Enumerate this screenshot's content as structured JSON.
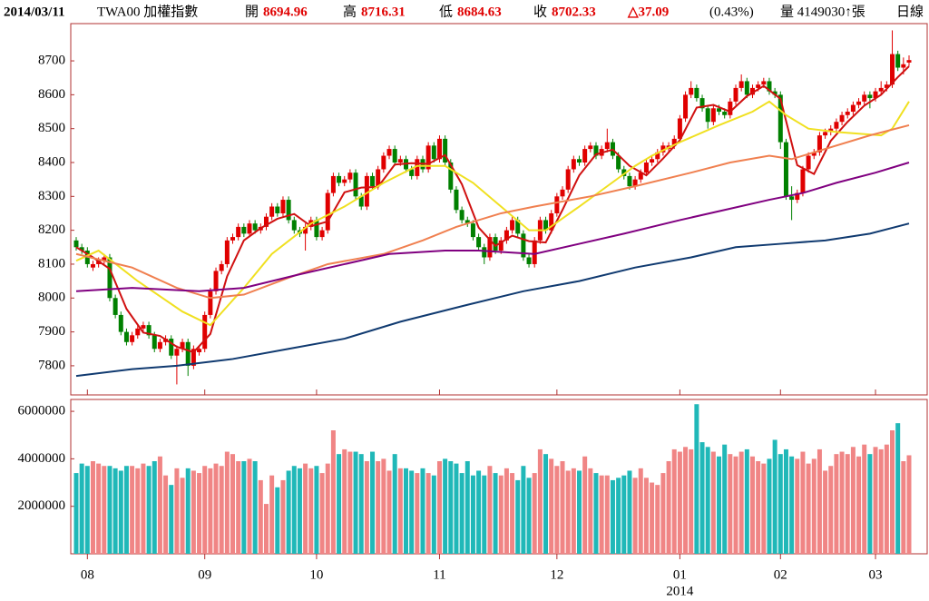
{
  "header": {
    "date": "2014/03/11",
    "symbol": "TWA00 加權指數",
    "open_label": "開",
    "open": "8694.96",
    "high_label": "高",
    "high": "8716.31",
    "low_label": "低",
    "low": "8684.63",
    "close_label": "收",
    "close": "8702.33",
    "change": "△37.09",
    "change_pct": "(0.43%)",
    "volume": "量 4149030↑張",
    "period": "日線"
  },
  "chart_data": {
    "type": "candlestick",
    "up_color": "#e00000",
    "down_color": "#008000",
    "ylim": [
      7714,
      8810
    ],
    "yticks": [
      7800,
      7900,
      8000,
      8100,
      8200,
      8300,
      8400,
      8500,
      8600,
      8700
    ],
    "xlim": [
      0,
      149
    ],
    "xticks": [
      {
        "value": 2,
        "label": "08"
      },
      {
        "value": 23,
        "label": "09"
      },
      {
        "value": 43,
        "label": "10"
      },
      {
        "value": 65,
        "label": "11"
      },
      {
        "value": 86,
        "label": "12"
      },
      {
        "value": 108,
        "label": "01"
      },
      {
        "value": 126,
        "label": "02"
      },
      {
        "value": 143,
        "label": "03"
      }
    ],
    "annotation": "2014",
    "annotation_x": 108,
    "open": [
      8170,
      8150,
      8140,
      8090,
      8100,
      8110,
      8120,
      8000,
      7950,
      7900,
      7870,
      7890,
      7910,
      7920,
      7890,
      7850,
      7870,
      7880,
      7830,
      7850,
      7870,
      7800,
      7840,
      7850,
      7950,
      8020,
      8080,
      8100,
      8170,
      8180,
      8210,
      8190,
      8220,
      8200,
      8210,
      8240,
      8270,
      8250,
      8290,
      8230,
      8200,
      8190,
      8210,
      8230,
      8180,
      8200,
      8310,
      8360,
      8340,
      8350,
      8370,
      8300,
      8270,
      8360,
      8330,
      8380,
      8420,
      8440,
      8400,
      8410,
      8380,
      8360,
      8410,
      8380,
      8450,
      8410,
      8470,
      8400,
      8320,
      8260,
      8230,
      8220,
      8180,
      8150,
      8120,
      8180,
      8140,
      8170,
      8200,
      8230,
      8190,
      8120,
      8100,
      8170,
      8230,
      8200,
      8250,
      8300,
      8320,
      8380,
      8410,
      8400,
      8440,
      8450,
      8420,
      8440,
      8460,
      8420,
      8380,
      8360,
      8330,
      8350,
      8370,
      8400,
      8410,
      8430,
      8440,
      8450,
      8470,
      8530,
      8600,
      8620,
      8590,
      8560,
      8520,
      8560,
      8550,
      8540,
      8580,
      8620,
      8640,
      8600,
      8620,
      8630,
      8640,
      8610,
      8600,
      8460,
      8300,
      8290,
      8310,
      8380,
      8420,
      8430,
      8480,
      8490,
      8500,
      8520,
      8540,
      8550,
      8570,
      8580,
      8600,
      8590,
      8610,
      8620,
      8630,
      8720,
      8680,
      8694.96
    ],
    "high": [
      8180,
      8160,
      8150,
      8110,
      8120,
      8130,
      8130,
      8010,
      7960,
      7910,
      7900,
      7920,
      7930,
      7930,
      7900,
      7880,
      7890,
      7890,
      7860,
      7880,
      7880,
      7860,
      7860,
      7960,
      8030,
      8090,
      8110,
      8180,
      8190,
      8220,
      8220,
      8230,
      8230,
      8220,
      8250,
      8280,
      8280,
      8300,
      8300,
      8240,
      8210,
      8220,
      8240,
      8240,
      8210,
      8320,
      8370,
      8370,
      8360,
      8380,
      8380,
      8310,
      8370,
      8370,
      8390,
      8430,
      8450,
      8450,
      8420,
      8420,
      8390,
      8420,
      8420,
      8460,
      8460,
      8480,
      8480,
      8410,
      8330,
      8270,
      8240,
      8230,
      8190,
      8160,
      8190,
      8190,
      8180,
      8210,
      8240,
      8240,
      8200,
      8130,
      8180,
      8240,
      8240,
      8260,
      8310,
      8330,
      8390,
      8420,
      8420,
      8450,
      8460,
      8460,
      8450,
      8500,
      8470,
      8430,
      8390,
      8370,
      8360,
      8380,
      8410,
      8420,
      8440,
      8460,
      8460,
      8480,
      8540,
      8610,
      8640,
      8630,
      8600,
      8570,
      8570,
      8570,
      8560,
      8590,
      8630,
      8660,
      8650,
      8630,
      8640,
      8650,
      8650,
      8620,
      8610,
      8470,
      8330,
      8320,
      8390,
      8430,
      8440,
      8490,
      8500,
      8510,
      8530,
      8550,
      8560,
      8580,
      8590,
      8610,
      8610,
      8620,
      8640,
      8640,
      8790,
      8730,
      8710,
      8716.31
    ],
    "low": [
      8140,
      8130,
      8090,
      8080,
      8090,
      8100,
      7990,
      7940,
      7890,
      7860,
      7860,
      7880,
      7900,
      7880,
      7840,
      7840,
      7860,
      7820,
      7745,
      7840,
      7770,
      7790,
      7830,
      7840,
      7940,
      8010,
      8070,
      8090,
      8160,
      8170,
      8180,
      8180,
      8190,
      8190,
      8200,
      8230,
      8240,
      8240,
      8220,
      8190,
      8180,
      8140,
      8200,
      8170,
      8170,
      8190,
      8300,
      8330,
      8330,
      8340,
      8290,
      8260,
      8260,
      8320,
      8320,
      8370,
      8410,
      8390,
      8390,
      8370,
      8350,
      8350,
      8370,
      8370,
      8400,
      8400,
      8390,
      8310,
      8250,
      8220,
      8210,
      8170,
      8140,
      8100,
      8110,
      8130,
      8130,
      8160,
      8190,
      8180,
      8110,
      8090,
      8090,
      8160,
      8190,
      8190,
      8240,
      8290,
      8310,
      8370,
      8390,
      8390,
      8430,
      8410,
      8410,
      8430,
      8410,
      8370,
      8350,
      8320,
      8320,
      8340,
      8360,
      8390,
      8400,
      8420,
      8430,
      8440,
      8460,
      8520,
      8590,
      8580,
      8550,
      8500,
      8510,
      8540,
      8530,
      8530,
      8570,
      8610,
      8590,
      8590,
      8610,
      8620,
      8600,
      8590,
      8440,
      8290,
      8230,
      8280,
      8300,
      8370,
      8410,
      8420,
      8470,
      8480,
      8490,
      8510,
      8530,
      8540,
      8560,
      8570,
      8560,
      8580,
      8600,
      8610,
      8620,
      8670,
      8660,
      8684.63
    ],
    "close": [
      8150,
      8140,
      8100,
      8100,
      8110,
      8120,
      8000,
      7950,
      7900,
      7870,
      7890,
      7910,
      7920,
      7890,
      7850,
      7870,
      7880,
      7830,
      7850,
      7870,
      7800,
      7850,
      7850,
      7950,
      8020,
      8080,
      8100,
      8170,
      8180,
      8210,
      8190,
      8220,
      8200,
      8210,
      8240,
      8270,
      8250,
      8290,
      8230,
      8200,
      8190,
      8210,
      8230,
      8180,
      8200,
      8310,
      8360,
      8340,
      8350,
      8370,
      8300,
      8270,
      8360,
      8330,
      8380,
      8420,
      8440,
      8400,
      8410,
      8380,
      8360,
      8410,
      8380,
      8450,
      8410,
      8470,
      8400,
      8320,
      8260,
      8230,
      8220,
      8180,
      8150,
      8120,
      8180,
      8140,
      8170,
      8200,
      8230,
      8190,
      8120,
      8100,
      8170,
      8230,
      8200,
      8250,
      8300,
      8320,
      8380,
      8410,
      8400,
      8440,
      8450,
      8420,
      8440,
      8460,
      8420,
      8380,
      8360,
      8330,
      8350,
      8370,
      8400,
      8410,
      8430,
      8450,
      8450,
      8470,
      8530,
      8600,
      8620,
      8590,
      8560,
      8520,
      8560,
      8550,
      8540,
      8580,
      8620,
      8640,
      8600,
      8620,
      8630,
      8640,
      8610,
      8600,
      8460,
      8300,
      8290,
      8310,
      8380,
      8420,
      8430,
      8480,
      8490,
      8500,
      8520,
      8540,
      8550,
      8570,
      8580,
      8600,
      8590,
      8610,
      8620,
      8630,
      8720,
      8680,
      8690,
      8702.33
    ],
    "moving_averages": [
      {
        "color": "#d01010",
        "x": [
          0,
          3,
          6,
          9,
          12,
          15,
          18,
          21,
          24,
          27,
          30,
          33,
          36,
          39,
          42,
          45,
          48,
          51,
          54,
          57,
          60,
          63,
          66,
          69,
          72,
          75,
          78,
          81,
          84,
          87,
          90,
          93,
          96,
          99,
          102,
          105,
          108,
          111,
          114,
          117,
          120,
          123,
          126,
          129,
          132,
          135,
          138,
          141,
          144,
          147,
          149
        ],
        "values": [
          8150,
          8120,
          8086,
          7968,
          7898,
          7888,
          7856,
          7840,
          7894,
          8064,
          8170,
          8206,
          8234,
          8248,
          8212,
          8226,
          8312,
          8326,
          8328,
          8394,
          8398,
          8396,
          8422,
          8336,
          8208,
          8154,
          8184,
          8168,
          8164,
          8260,
          8362,
          8424,
          8438,
          8390,
          8362,
          8412,
          8466,
          8562,
          8570,
          8550,
          8596,
          8626,
          8588,
          8392,
          8366,
          8464,
          8520,
          8568,
          8600,
          8652,
          8684
        ]
      },
      {
        "color": "#f0e020",
        "x": [
          0,
          4,
          11,
          19,
          24,
          30,
          35,
          42,
          48,
          55,
          61,
          66,
          71,
          76,
          81,
          84,
          90,
          95,
          100,
          103,
          108,
          115,
          121,
          124,
          127,
          131,
          136,
          144,
          146,
          149
        ],
        "values": [
          8110,
          8140,
          8050,
          7960,
          7920,
          8030,
          8130,
          8220,
          8270,
          8340,
          8390,
          8390,
          8340,
          8270,
          8200,
          8200,
          8270,
          8330,
          8390,
          8420,
          8460,
          8510,
          8550,
          8580,
          8540,
          8500,
          8490,
          8480,
          8500,
          8580
        ]
      },
      {
        "color": "#f08050",
        "x": [
          0,
          10,
          18,
          24,
          30,
          38,
          45,
          55,
          62,
          68,
          76,
          82,
          92,
          100,
          110,
          117,
          124,
          128,
          134,
          142,
          149
        ],
        "values": [
          8130,
          8090,
          8030,
          8000,
          8010,
          8060,
          8100,
          8130,
          8170,
          8210,
          8250,
          8270,
          8300,
          8330,
          8370,
          8400,
          8420,
          8410,
          8440,
          8480,
          8510
        ]
      },
      {
        "color": "#800080",
        "x": [
          0,
          10,
          22,
          30,
          40,
          48,
          56,
          66,
          72,
          82,
          90,
          98,
          108,
          116,
          124,
          130,
          136,
          143,
          149
        ],
        "values": [
          8020,
          8030,
          8020,
          8030,
          8070,
          8100,
          8130,
          8140,
          8140,
          8130,
          8160,
          8190,
          8230,
          8260,
          8290,
          8310,
          8340,
          8370,
          8400
        ]
      },
      {
        "color": "#103a70",
        "x": [
          0,
          10,
          18,
          28,
          38,
          48,
          58,
          70,
          80,
          90,
          100,
          110,
          118,
          126,
          134,
          142,
          149
        ],
        "values": [
          7770,
          7790,
          7800,
          7820,
          7850,
          7880,
          7930,
          7980,
          8020,
          8050,
          8090,
          8120,
          8150,
          8160,
          8170,
          8190,
          8220
        ]
      }
    ],
    "volume": {
      "up_color": "#f08585",
      "down_color": "#20b8b8",
      "ylim": [
        0,
        6500000
      ],
      "yticks": [
        2000000,
        4000000,
        6000000
      ],
      "values": [
        3400000,
        3800000,
        3700000,
        3900000,
        3800000,
        3700000,
        3700000,
        3600000,
        3500000,
        3700000,
        3700000,
        3600000,
        3800000,
        3700000,
        3900000,
        4100000,
        3300000,
        2900000,
        3600000,
        3200000,
        3600000,
        3500000,
        3400000,
        3700000,
        3600000,
        3800000,
        3700000,
        4300000,
        4200000,
        3900000,
        3900000,
        4000000,
        3900000,
        3100000,
        2100000,
        3300000,
        2800000,
        3100000,
        3500000,
        3700000,
        3600000,
        3800000,
        3600000,
        3700000,
        3400000,
        3800000,
        5200000,
        4200000,
        4400000,
        4300000,
        4300000,
        4200000,
        3900000,
        4300000,
        3900000,
        4000000,
        3500000,
        4200000,
        3600000,
        3600000,
        3500000,
        3400000,
        3600000,
        3400000,
        3300000,
        3900000,
        4000000,
        3900000,
        3800000,
        3400000,
        3900000,
        3300000,
        3500000,
        3300000,
        3700000,
        3400000,
        3300000,
        3600000,
        3400000,
        3100000,
        3700000,
        3200000,
        3400000,
        4400000,
        4200000,
        4000000,
        3700000,
        3900000,
        3500000,
        3600000,
        3500000,
        4100000,
        3600000,
        3400000,
        3300000,
        3300000,
        3100000,
        3200000,
        3300000,
        3500000,
        3200000,
        3600000,
        3200000,
        3000000,
        2900000,
        3400000,
        3900000,
        4400000,
        4300000,
        4500000,
        4400000,
        6300000,
        4700000,
        4500000,
        4300000,
        4100000,
        4600000,
        4200000,
        4100000,
        4300000,
        4400000,
        4100000,
        3900000,
        3800000,
        4000000,
        4800000,
        4200000,
        4400000,
        4100000,
        4000000,
        4300000,
        3800000,
        4000000,
        4400000,
        3500000,
        3700000,
        4200000,
        4300000,
        4200000,
        4500000,
        4100000,
        4600000,
        4200000,
        4500000,
        4400000,
        4600000,
        5200000,
        5500000,
        3900000,
        4149030
      ]
    }
  }
}
